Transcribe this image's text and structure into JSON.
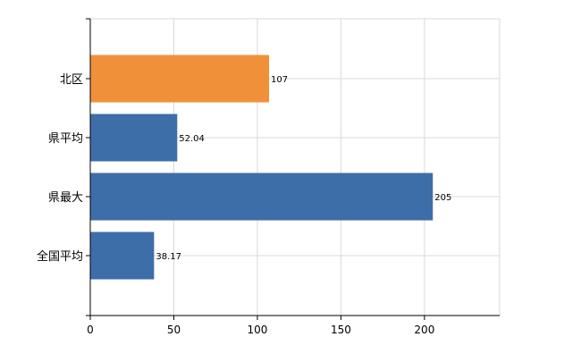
{
  "chart_data": {
    "type": "bar",
    "orientation": "horizontal",
    "categories": [
      "北区",
      "県平均",
      "県最大",
      "全国平均"
    ],
    "values": [
      107,
      52.04,
      205,
      38.17
    ],
    "data_labels": [
      "107",
      "52.04",
      "205",
      "38.17"
    ],
    "bar_colors": [
      "#f0913a",
      "#3e6ea8",
      "#3e6ea8",
      "#3e6ea8"
    ],
    "xlim": [
      0,
      245
    ],
    "x_ticks": [
      0,
      50,
      100,
      150,
      200
    ],
    "x_tick_labels": [
      "0",
      "50",
      "100",
      "150",
      "200"
    ],
    "grid": true,
    "grid_color": "#d9d9d9",
    "title": "",
    "xlabel": "",
    "ylabel": ""
  }
}
